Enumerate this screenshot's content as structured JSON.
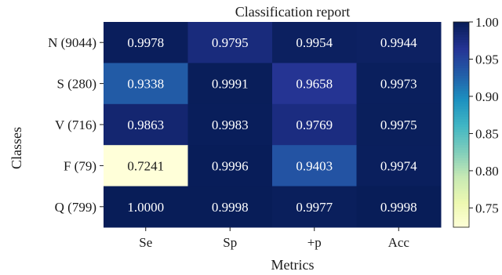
{
  "chart_data": {
    "type": "heatmap",
    "title": "Classification report",
    "xlabel": "Metrics",
    "ylabel": "Classes",
    "columns": [
      "Se",
      "Sp",
      "+p",
      "Acc"
    ],
    "rows": [
      "N (9044)",
      "S (280)",
      "V (716)",
      "F (79)",
      "Q (799)"
    ],
    "values": [
      [
        0.9978,
        0.9795,
        0.9954,
        0.9944
      ],
      [
        0.9338,
        0.9991,
        0.9658,
        0.9973
      ],
      [
        0.9863,
        0.9983,
        0.9769,
        0.9975
      ],
      [
        0.7241,
        0.9996,
        0.9403,
        0.9974
      ],
      [
        1.0,
        0.9998,
        0.9977,
        0.9998
      ]
    ],
    "cell_labels": [
      [
        "0.9978",
        "0.9795",
        "0.9954",
        "0.9944"
      ],
      [
        "0.9338",
        "0.9991",
        "0.9658",
        "0.9973"
      ],
      [
        "0.9863",
        "0.9983",
        "0.9769",
        "0.9975"
      ],
      [
        "0.7241",
        "0.9996",
        "0.9403",
        "0.9974"
      ],
      [
        "1.0000",
        "0.9998",
        "0.9977",
        "0.9998"
      ]
    ],
    "colorbar": {
      "vmin": 0.7241,
      "vmax": 1.0,
      "ticks": [
        1.0,
        0.95,
        0.9,
        0.85,
        0.8,
        0.75
      ],
      "tick_labels": [
        "1.00",
        "0.95",
        "0.90",
        "0.85",
        "0.80",
        "0.75"
      ],
      "colormap": "YlGnBu",
      "position": "right"
    },
    "colors": {
      "low": "#ffffd9",
      "high": "#081d58",
      "text_on_dark": "#ffffff",
      "text_on_light": "#1a1a1a"
    }
  }
}
